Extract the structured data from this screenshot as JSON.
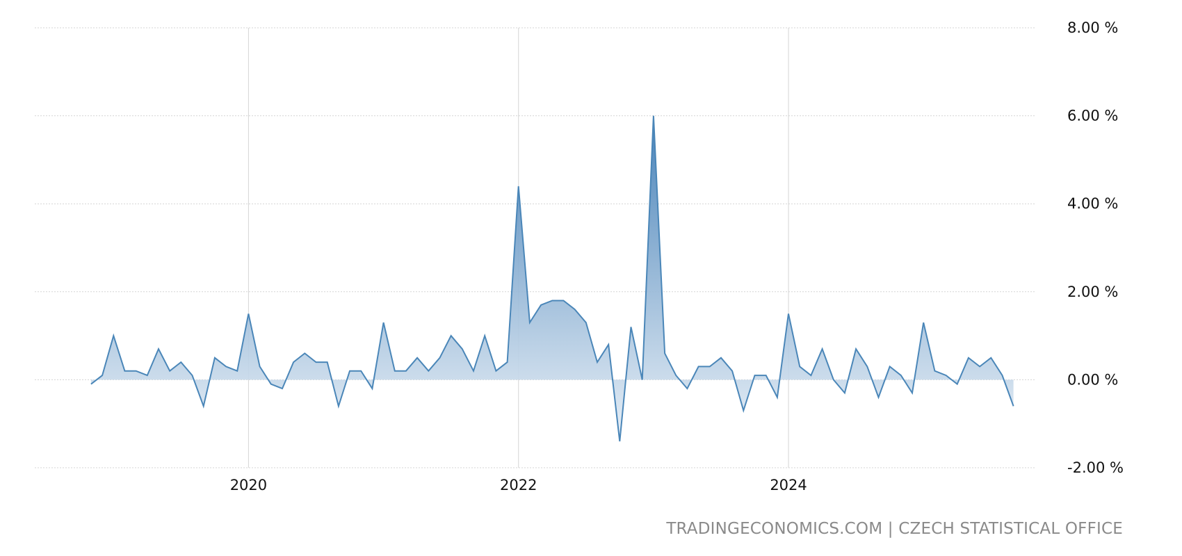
{
  "chart_data": {
    "type": "area",
    "unit": "%",
    "x_start": "2018-11",
    "x_frequency": "monthly",
    "xlim": [
      "2018-06",
      "2025-11"
    ],
    "ylim": [
      -2,
      8
    ],
    "grid": true,
    "x_ticks": [
      {
        "date": "2020-01",
        "label": "2020"
      },
      {
        "date": "2022-01",
        "label": "2022"
      },
      {
        "date": "2024-01",
        "label": "2024"
      }
    ],
    "y_ticks": [
      {
        "value": 8,
        "label": "8.00 %"
      },
      {
        "value": 6,
        "label": "6.00 %"
      },
      {
        "value": 4,
        "label": "4.00 %"
      },
      {
        "value": 2,
        "label": "2.00 %"
      },
      {
        "value": 0,
        "label": "0.00 %"
      },
      {
        "value": -2,
        "label": "-2.00 %"
      }
    ],
    "values": [
      -0.1,
      0.1,
      1.0,
      0.2,
      0.2,
      0.1,
      0.7,
      0.2,
      0.4,
      0.1,
      -0.6,
      0.5,
      0.3,
      0.2,
      1.5,
      0.3,
      -0.1,
      -0.2,
      0.4,
      0.6,
      0.4,
      0.4,
      -0.6,
      0.2,
      0.2,
      -0.2,
      1.3,
      0.2,
      0.2,
      0.5,
      0.2,
      0.5,
      1.0,
      0.7,
      0.2,
      1.0,
      0.2,
      0.4,
      4.4,
      1.3,
      1.7,
      1.8,
      1.8,
      1.6,
      1.3,
      0.4,
      0.8,
      -1.4,
      1.2,
      0.0,
      6.0,
      0.6,
      0.1,
      -0.2,
      0.3,
      0.3,
      0.5,
      0.2,
      -0.7,
      0.1,
      0.1,
      -0.4,
      1.5,
      0.3,
      0.1,
      0.7,
      0.0,
      -0.3,
      0.7,
      0.3,
      -0.4,
      0.3,
      0.1,
      -0.3,
      1.3,
      0.2,
      0.1,
      -0.1,
      0.5,
      0.3,
      0.5,
      0.1,
      -0.6
    ],
    "colors": {
      "line": "#4a86b8",
      "fill_top": "#3f7cb5",
      "fill_bottom": "#e6eef6",
      "grid": "#d4d4d4"
    }
  },
  "source": "TRADINGECONOMICS.COM | CZECH STATISTICAL OFFICE"
}
